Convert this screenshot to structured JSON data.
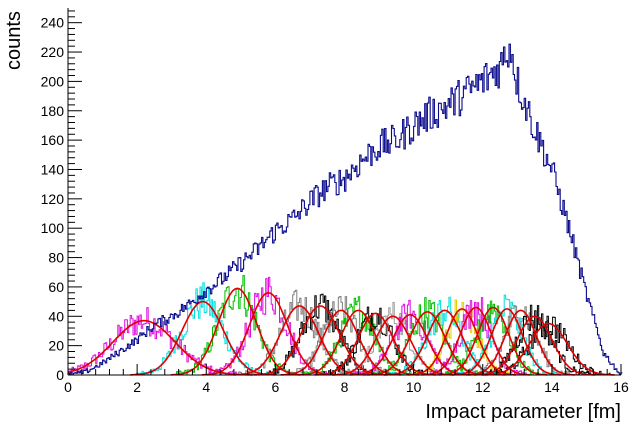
{
  "chart_data": {
    "type": "histogram",
    "title": "",
    "xlabel": "Impact parameter [fm]",
    "ylabel": "counts",
    "xlim": [
      0,
      16
    ],
    "ylim": [
      0,
      250
    ],
    "x_ticks": [
      0,
      2,
      4,
      6,
      8,
      10,
      12,
      14,
      16
    ],
    "y_ticks": [
      0,
      20,
      40,
      60,
      80,
      100,
      120,
      140,
      160,
      180,
      200,
      220,
      240
    ],
    "grid": false,
    "legend": "none",
    "total": {
      "color": "#0a0a8c",
      "shape": "step",
      "points": [
        [
          0.0,
          0
        ],
        [
          0.5,
          2
        ],
        [
          1.0,
          8
        ],
        [
          1.5,
          16
        ],
        [
          2.0,
          24
        ],
        [
          2.5,
          34
        ],
        [
          3.0,
          40
        ],
        [
          3.5,
          48
        ],
        [
          4.0,
          58
        ],
        [
          4.5,
          66
        ],
        [
          5.0,
          76
        ],
        [
          5.5,
          86
        ],
        [
          6.0,
          98
        ],
        [
          6.5,
          106
        ],
        [
          7.0,
          118
        ],
        [
          7.5,
          128
        ],
        [
          8.0,
          134
        ],
        [
          8.5,
          146
        ],
        [
          9.0,
          156
        ],
        [
          9.5,
          160
        ],
        [
          10.0,
          170
        ],
        [
          10.5,
          178
        ],
        [
          11.0,
          184
        ],
        [
          11.5,
          192
        ],
        [
          12.0,
          200
        ],
        [
          12.5,
          210
        ],
        [
          12.8,
          225
        ],
        [
          13.0,
          200
        ],
        [
          13.5,
          168
        ],
        [
          14.0,
          140
        ],
        [
          14.5,
          100
        ],
        [
          15.0,
          55
        ],
        [
          15.5,
          15
        ],
        [
          16.0,
          0
        ]
      ]
    },
    "peaks": [
      {
        "mean": 2.2,
        "sigma": 0.9,
        "amp": 37,
        "hist_color": "#e010e0"
      },
      {
        "mean": 3.9,
        "sigma": 0.6,
        "amp": 50,
        "hist_color": "#00e0e0"
      },
      {
        "mean": 4.9,
        "sigma": 0.55,
        "amp": 59,
        "hist_color": "#00c000"
      },
      {
        "mean": 5.8,
        "sigma": 0.55,
        "amp": 56,
        "hist_color": "#e010e0"
      },
      {
        "mean": 6.7,
        "sigma": 0.55,
        "amp": 47,
        "hist_color": "#808080"
      },
      {
        "mean": 7.3,
        "sigma": 0.55,
        "amp": 47,
        "hist_color": "#000000"
      },
      {
        "mean": 7.9,
        "sigma": 0.5,
        "amp": 44,
        "hist_color": "#808080"
      },
      {
        "mean": 8.4,
        "sigma": 0.5,
        "amp": 44,
        "hist_color": "#00c000"
      },
      {
        "mean": 8.9,
        "sigma": 0.5,
        "amp": 42,
        "hist_color": "#000000"
      },
      {
        "mean": 9.4,
        "sigma": 0.5,
        "amp": 40,
        "hist_color": "#a0a0a0"
      },
      {
        "mean": 9.9,
        "sigma": 0.5,
        "amp": 41,
        "hist_color": "#e010e0"
      },
      {
        "mean": 10.4,
        "sigma": 0.5,
        "amp": 43,
        "hist_color": "#00c000"
      },
      {
        "mean": 10.9,
        "sigma": 0.5,
        "amp": 44,
        "hist_color": "#00e0e0"
      },
      {
        "mean": 11.4,
        "sigma": 0.45,
        "amp": 45,
        "hist_color": "#e0d000"
      },
      {
        "mean": 11.8,
        "sigma": 0.45,
        "amp": 46,
        "hist_color": "#e010e0"
      },
      {
        "mean": 12.3,
        "sigma": 0.45,
        "amp": 46,
        "hist_color": "#00c000"
      },
      {
        "mean": 12.7,
        "sigma": 0.45,
        "amp": 45,
        "hist_color": "#00e0e0"
      },
      {
        "mean": 13.1,
        "sigma": 0.45,
        "amp": 44,
        "hist_color": "#808080"
      },
      {
        "mean": 13.5,
        "sigma": 0.5,
        "amp": 40,
        "hist_color": "#000000"
      },
      {
        "mean": 13.9,
        "sigma": 0.55,
        "amp": 35,
        "hist_color": "#000000"
      }
    ],
    "fit_color": "#e00000"
  }
}
